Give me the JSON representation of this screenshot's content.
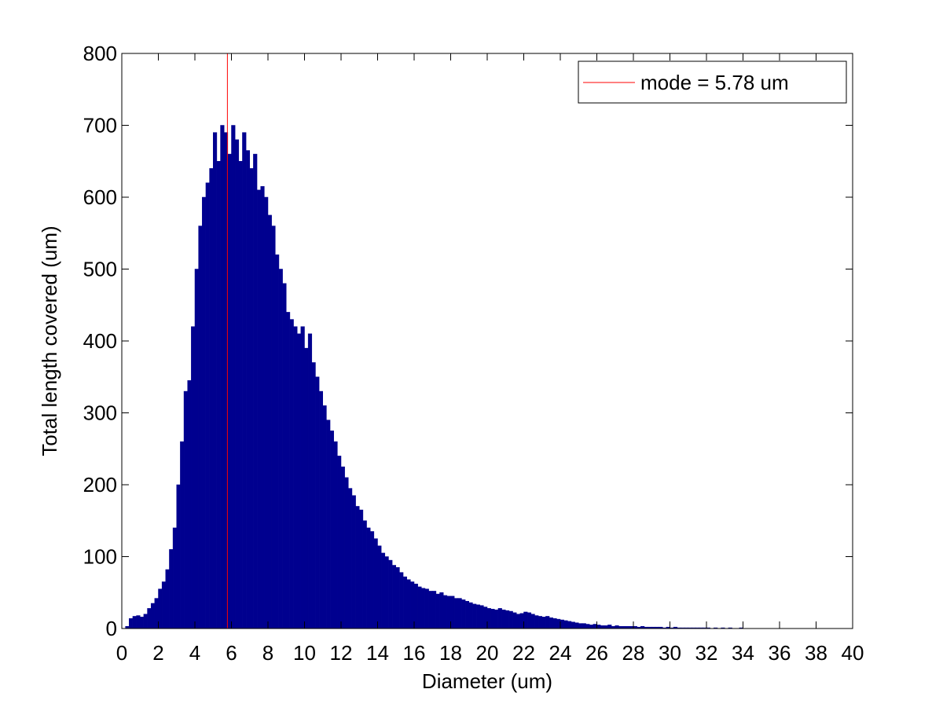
{
  "chart_data": {
    "type": "histogram",
    "xlabel": "Diameter (um)",
    "ylabel": "Total length covered (um)",
    "color": "#00008f",
    "bins": [
      0,
      0.2,
      0.4,
      0.6,
      0.8,
      1,
      1.2,
      1.4,
      1.6,
      1.8,
      2,
      2.2,
      2.4,
      2.6,
      2.8,
      3,
      3.2,
      3.4,
      3.6,
      3.8,
      4,
      4.2,
      4.4,
      4.6,
      4.8,
      5,
      5.2,
      5.4,
      5.6,
      5.8,
      6,
      6.2,
      6.4,
      6.6,
      6.8,
      7,
      7.2,
      7.4,
      7.6,
      7.8,
      8,
      8.2,
      8.4,
      8.6,
      8.8,
      9,
      9.2,
      9.4,
      9.6,
      9.8,
      10,
      10.2,
      10.4,
      10.6,
      10.8,
      11,
      11.2,
      11.4,
      11.6,
      11.8,
      12,
      12.2,
      12.4,
      12.6,
      12.8,
      13,
      13.2,
      13.4,
      13.6,
      13.8,
      14,
      14.2,
      14.4,
      14.6,
      14.8,
      15,
      15.2,
      15.4,
      15.6,
      15.8,
      16,
      16.2,
      16.4,
      16.6,
      16.8,
      17,
      17.2,
      17.4,
      17.6,
      17.8,
      18,
      18.2,
      18.4,
      18.6,
      18.8,
      19,
      19.2,
      19.4,
      19.6,
      19.8,
      20,
      20.2,
      20.4,
      20.6,
      20.8,
      21,
      21.2,
      21.4,
      21.6,
      21.8,
      22,
      22.2,
      22.4,
      22.6,
      22.8,
      23,
      23.2,
      23.4,
      23.6,
      23.8,
      24,
      24.2,
      24.4,
      24.6,
      24.8,
      25,
      25.2,
      25.4,
      25.6,
      25.8,
      26,
      26.2,
      26.4,
      26.6,
      26.8,
      27,
      27.2,
      27.4,
      27.6,
      27.8,
      28,
      28.2,
      28.4,
      28.6,
      28.8,
      29,
      29.2,
      29.4,
      29.6,
      29.8,
      30,
      30.2,
      30.4,
      30.6,
      30.8,
      31,
      31.2,
      31.4,
      31.6,
      31.8,
      32,
      32.2,
      32.4,
      32.6,
      32.8,
      33,
      33.2,
      33.4,
      33.6,
      33.8,
      34
    ],
    "values": [
      0,
      3,
      14,
      17,
      18,
      16,
      20,
      28,
      35,
      42,
      55,
      65,
      82,
      110,
      140,
      200,
      260,
      330,
      345,
      420,
      500,
      560,
      600,
      620,
      640,
      690,
      650,
      700,
      690,
      660,
      700,
      680,
      650,
      690,
      665,
      640,
      660,
      610,
      615,
      600,
      575,
      560,
      520,
      500,
      480,
      440,
      430,
      420,
      410,
      420,
      390,
      410,
      370,
      350,
      330,
      310,
      290,
      275,
      260,
      240,
      225,
      210,
      195,
      185,
      170,
      165,
      150,
      140,
      135,
      125,
      115,
      105,
      100,
      95,
      88,
      85,
      78,
      72,
      68,
      65,
      62,
      58,
      56,
      55,
      52,
      52,
      48,
      50,
      46,
      45,
      45,
      42,
      42,
      40,
      38,
      36,
      34,
      33,
      32,
      30,
      28,
      27,
      26,
      28,
      26,
      25,
      24,
      22,
      20,
      21,
      23,
      22,
      20,
      18,
      17,
      16,
      17,
      15,
      14,
      13,
      12,
      11,
      10,
      9,
      8,
      7,
      7,
      6,
      5,
      6,
      5,
      4,
      4,
      5,
      3,
      4,
      3,
      3,
      3,
      3,
      3,
      2,
      3,
      2,
      2,
      2,
      2,
      2,
      1,
      2,
      1,
      2,
      1,
      1,
      1,
      1,
      1,
      1,
      1,
      1,
      1,
      0,
      1,
      0,
      1,
      0,
      1,
      0,
      0,
      1
    ],
    "xlim": [
      0,
      40
    ],
    "xticks": [
      0,
      2,
      4,
      6,
      8,
      10,
      12,
      14,
      16,
      18,
      20,
      22,
      24,
      26,
      28,
      30,
      32,
      34,
      36,
      38,
      40
    ],
    "ylim": [
      0,
      800
    ],
    "yticks": [
      0,
      100,
      200,
      300,
      400,
      500,
      600,
      700,
      800
    ],
    "mode_line": {
      "x": 5.78,
      "label": "mode = 5.78 um",
      "color": "#ff0000"
    },
    "legend": "upper right"
  }
}
